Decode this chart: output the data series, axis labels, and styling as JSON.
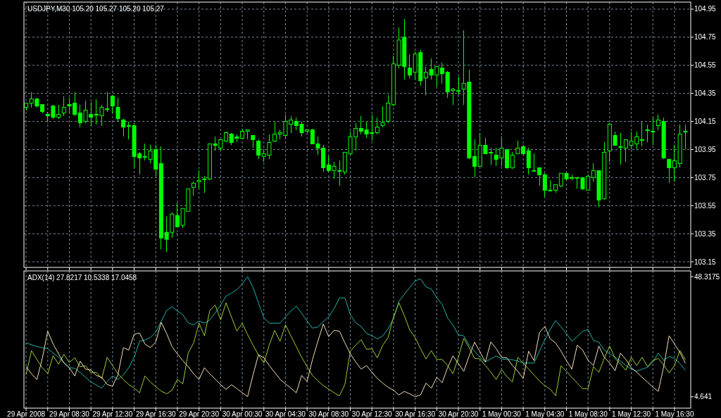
{
  "chart_data": [
    {
      "type": "candlestick",
      "title": "USDJPY,M30  105.20 105.27 105.20 105.27",
      "color": "#00ff00",
      "grid": true,
      "tick_labels": "y",
      "x": [
        "2008-04-29T04:30",
        "2008-04-29T05:00",
        "2008-04-29T05:30",
        "2008-04-29T06:00",
        "2008-04-29T06:30",
        "2008-04-29T07:00",
        "2008-04-29T07:30",
        "2008-04-29T08:00",
        "2008-04-29T08:30",
        "2008-04-29T09:00",
        "2008-04-29T09:30",
        "2008-04-29T10:00",
        "2008-04-29T10:30",
        "2008-04-29T11:00",
        "2008-04-29T11:30",
        "2008-04-29T12:00",
        "2008-04-29T12:30",
        "2008-04-29T13:00",
        "2008-04-29T13:30",
        "2008-04-29T14:00",
        "2008-04-29T14:30",
        "2008-04-29T15:00",
        "2008-04-29T15:30",
        "2008-04-29T16:00",
        "2008-04-29T16:30",
        "2008-04-29T17:00",
        "2008-04-29T17:30",
        "2008-04-29T18:00",
        "2008-04-29T18:30",
        "2008-04-29T19:00",
        "2008-04-29T19:30",
        "2008-04-29T20:00",
        "2008-04-29T20:30",
        "2008-04-29T21:00",
        "2008-04-29T21:30",
        "2008-04-29T22:00",
        "2008-04-29T22:30",
        "2008-04-29T23:00",
        "2008-04-29T23:30",
        "2008-04-30T00:00",
        "2008-04-30T00:30",
        "2008-04-30T01:00",
        "2008-04-30T01:30",
        "2008-04-30T02:00",
        "2008-04-30T02:30",
        "2008-04-30T03:00",
        "2008-04-30T03:30",
        "2008-04-30T04:00",
        "2008-04-30T04:30",
        "2008-04-30T05:00",
        "2008-04-30T05:30",
        "2008-04-30T06:00",
        "2008-04-30T06:30",
        "2008-04-30T07:00",
        "2008-04-30T07:30",
        "2008-04-30T08:00",
        "2008-04-30T08:30",
        "2008-04-30T09:00",
        "2008-04-30T09:30",
        "2008-04-30T10:00",
        "2008-04-30T10:30",
        "2008-04-30T11:00",
        "2008-04-30T11:30",
        "2008-04-30T12:00",
        "2008-04-30T12:30",
        "2008-04-30T13:00",
        "2008-04-30T13:30",
        "2008-04-30T14:00",
        "2008-04-30T14:30",
        "2008-04-30T15:00",
        "2008-04-30T15:30",
        "2008-04-30T16:00",
        "2008-04-30T16:30",
        "2008-04-30T17:00",
        "2008-04-30T17:30",
        "2008-04-30T18:00",
        "2008-04-30T18:30",
        "2008-04-30T19:00",
        "2008-04-30T19:30",
        "2008-04-30T20:00",
        "2008-04-30T20:30",
        "2008-04-30T21:00",
        "2008-04-30T21:30",
        "2008-04-30T22:00",
        "2008-04-30T22:30",
        "2008-04-30T23:00",
        "2008-04-30T23:30",
        "2008-05-01T00:00",
        "2008-05-01T00:30",
        "2008-05-01T01:00",
        "2008-05-01T01:30",
        "2008-05-01T02:00",
        "2008-05-01T02:30",
        "2008-05-01T03:00",
        "2008-05-01T03:30",
        "2008-05-01T04:00",
        "2008-05-01T04:30",
        "2008-05-01T05:00",
        "2008-05-01T05:30",
        "2008-05-01T06:00",
        "2008-05-01T06:30",
        "2008-05-01T07:00",
        "2008-05-01T07:30",
        "2008-05-01T08:00",
        "2008-05-01T08:30",
        "2008-05-01T09:00",
        "2008-05-01T09:30",
        "2008-05-01T10:00",
        "2008-05-01T10:30",
        "2008-05-01T11:00",
        "2008-05-01T11:30",
        "2008-05-01T12:00",
        "2008-05-01T12:30",
        "2008-05-01T13:00",
        "2008-05-01T13:30",
        "2008-05-01T14:00",
        "2008-05-01T14:30",
        "2008-05-01T15:00",
        "2008-05-01T15:30",
        "2008-05-01T16:00",
        "2008-05-01T16:30",
        "2008-05-01T17:00",
        "2008-05-01T17:30"
      ],
      "ohlc": [
        [
          104.25,
          104.28,
          104.23,
          104.28
        ],
        [
          104.28,
          104.36,
          104.25,
          104.31
        ],
        [
          104.31,
          104.32,
          104.25,
          104.26
        ],
        [
          104.27,
          104.27,
          104.21,
          104.22
        ],
        [
          104.2,
          104.22,
          104.15,
          104.19
        ],
        [
          104.26,
          104.27,
          104.17,
          104.18
        ],
        [
          104.18,
          104.27,
          104.17,
          104.2
        ],
        [
          104.21,
          104.33,
          104.19,
          104.25
        ],
        [
          104.27,
          104.32,
          104.21,
          104.26
        ],
        [
          104.28,
          104.36,
          104.19,
          104.2
        ],
        [
          104.21,
          104.27,
          104.11,
          104.14
        ],
        [
          104.15,
          104.3,
          104.14,
          104.23
        ],
        [
          104.2,
          104.29,
          104.12,
          104.18
        ],
        [
          104.2,
          104.31,
          104.13,
          104.2
        ],
        [
          104.19,
          104.27,
          104.12,
          104.25
        ],
        [
          104.24,
          104.36,
          104.22,
          104.24
        ],
        [
          104.33,
          104.34,
          104.21,
          104.26
        ],
        [
          104.25,
          104.32,
          104.15,
          104.17
        ],
        [
          104.16,
          104.17,
          104.04,
          104.11
        ],
        [
          104.12,
          104.15,
          104.02,
          104.12
        ],
        [
          104.12,
          104.14,
          103.82,
          103.9
        ],
        [
          103.92,
          103.93,
          103.77,
          103.89
        ],
        [
          103.9,
          103.99,
          103.87,
          103.9
        ],
        [
          103.88,
          103.98,
          103.85,
          103.94
        ],
        [
          103.95,
          103.98,
          103.76,
          103.81
        ],
        [
          103.85,
          103.97,
          103.24,
          103.32
        ],
        [
          103.36,
          103.47,
          103.22,
          103.31
        ],
        [
          103.36,
          103.5,
          103.32,
          103.49
        ],
        [
          103.48,
          103.57,
          103.4,
          103.4
        ],
        [
          103.41,
          103.53,
          103.39,
          103.53
        ],
        [
          103.51,
          103.67,
          103.51,
          103.67
        ],
        [
          103.68,
          103.72,
          103.62,
          103.71
        ],
        [
          103.72,
          103.8,
          103.67,
          103.73
        ],
        [
          103.74,
          103.76,
          103.64,
          103.74
        ],
        [
          103.74,
          103.99,
          103.73,
          103.99
        ],
        [
          103.99,
          104.04,
          103.94,
          103.98
        ],
        [
          103.96,
          104.02,
          103.94,
          104.02
        ],
        [
          104.01,
          104.08,
          104,
          104.07
        ],
        [
          104.06,
          104.07,
          103.98,
          104
        ],
        [
          104.04,
          104.06,
          104,
          104.03
        ],
        [
          104.03,
          104.1,
          104.02,
          104.08
        ],
        [
          104.08,
          104.09,
          104.02,
          104.09
        ],
        [
          104.05,
          104.05,
          103.96,
          104.02
        ],
        [
          104.01,
          104.02,
          103.88,
          103.91
        ],
        [
          103.9,
          103.95,
          103.86,
          103.92
        ],
        [
          103.91,
          104.06,
          103.88,
          104
        ],
        [
          104.01,
          104.15,
          104,
          104.06
        ],
        [
          104.06,
          104.09,
          104.02,
          104.07
        ],
        [
          104.05,
          104.2,
          104.03,
          104.15
        ],
        [
          104.13,
          104.19,
          104.07,
          104.16
        ],
        [
          104.15,
          104.18,
          104.09,
          104.12
        ],
        [
          104.13,
          104.15,
          104.04,
          104.07
        ],
        [
          104.08,
          104.09,
          104.07,
          104.09
        ],
        [
          104.09,
          104.1,
          103.99,
          103.99
        ],
        [
          103.99,
          104.04,
          103.91,
          103.96
        ],
        [
          103.96,
          103.98,
          103.79,
          103.82
        ],
        [
          103.84,
          103.9,
          103.79,
          103.8
        ],
        [
          103.8,
          103.86,
          103.74,
          103.83
        ],
        [
          103.8,
          103.87,
          103.69,
          103.8
        ],
        [
          103.79,
          103.93,
          103.77,
          103.93
        ],
        [
          103.92,
          104.08,
          103.91,
          104.04
        ],
        [
          104.04,
          104.14,
          103.94,
          104.1
        ],
        [
          104.1,
          104.19,
          104.06,
          104.08
        ],
        [
          104.09,
          104.15,
          104.03,
          104.06
        ],
        [
          104.07,
          104.2,
          104.01,
          104.07
        ],
        [
          104.07,
          104.18,
          104.06,
          104.11
        ],
        [
          104.12,
          104.26,
          104.11,
          104.14
        ],
        [
          104.15,
          104.34,
          104.14,
          104.28
        ],
        [
          104.27,
          104.62,
          104.26,
          104.56
        ],
        [
          104.55,
          104.82,
          104.53,
          104.73
        ],
        [
          104.75,
          104.88,
          104.45,
          104.54
        ],
        [
          104.53,
          104.63,
          104.46,
          104.48
        ],
        [
          104.5,
          104.65,
          104.45,
          104.63
        ],
        [
          104.64,
          104.66,
          104.41,
          104.44
        ],
        [
          104.46,
          104.54,
          104.34,
          104.5
        ],
        [
          104.52,
          104.6,
          104.45,
          104.48
        ],
        [
          104.48,
          104.54,
          104.4,
          104.54
        ],
        [
          104.53,
          104.57,
          104.42,
          104.49
        ],
        [
          104.5,
          104.51,
          104.32,
          104.36
        ],
        [
          104.37,
          104.39,
          104.27,
          104.38
        ],
        [
          104.37,
          104.47,
          104.34,
          104.37
        ],
        [
          104.38,
          104.8,
          104.27,
          104.42
        ],
        [
          104.43,
          104.52,
          103.88,
          103.89
        ],
        [
          103.9,
          104.02,
          103.75,
          103.83
        ],
        [
          103.83,
          104.07,
          103.83,
          103.98
        ],
        [
          103.98,
          104.03,
          103.92,
          103.92
        ],
        [
          103.93,
          103.96,
          103.84,
          103.93
        ],
        [
          103.91,
          103.96,
          103.83,
          103.88
        ],
        [
          103.89,
          104.04,
          103.83,
          103.96
        ],
        [
          103.95,
          103.95,
          103.81,
          103.82
        ],
        [
          103.82,
          103.93,
          103.81,
          103.91
        ],
        [
          103.92,
          104.01,
          103.92,
          103.96
        ],
        [
          103.97,
          103.98,
          103.91,
          103.92
        ],
        [
          103.94,
          103.96,
          103.77,
          103.82
        ],
        [
          103.8,
          103.92,
          103.8,
          103.8
        ],
        [
          103.82,
          103.82,
          103.69,
          103.77
        ],
        [
          103.77,
          103.78,
          103.61,
          103.66
        ],
        [
          103.66,
          103.73,
          103.65,
          103.66
        ],
        [
          103.66,
          103.7,
          103.64,
          103.7
        ],
        [
          103.69,
          103.78,
          103.68,
          103.78
        ],
        [
          103.78,
          103.78,
          103.73,
          103.74
        ],
        [
          103.75,
          103.77,
          103.73,
          103.75
        ],
        [
          103.75,
          103.75,
          103.67,
          103.75
        ],
        [
          103.75,
          103.75,
          103.66,
          103.67
        ],
        [
          103.66,
          103.77,
          103.66,
          103.76
        ],
        [
          103.75,
          103.85,
          103.72,
          103.8
        ],
        [
          103.8,
          103.8,
          103.54,
          103.59
        ],
        [
          103.6,
          104,
          103.59,
          103.93
        ],
        [
          103.94,
          104.14,
          103.86,
          104.13
        ],
        [
          104.05,
          104.08,
          103.98,
          103.98
        ],
        [
          103.97,
          104.07,
          103.84,
          103.97
        ],
        [
          103.96,
          104.02,
          103.86,
          104.02
        ],
        [
          103.98,
          104.08,
          103.95,
          104.01
        ],
        [
          103.99,
          104.08,
          103.95,
          104.04
        ],
        [
          104.02,
          104.15,
          103.97,
          104.02
        ],
        [
          104.09,
          104.13,
          104,
          104.09
        ],
        [
          104.08,
          104.18,
          103.98,
          104.08
        ],
        [
          104.12,
          104.2,
          104.09,
          104.16
        ],
        [
          104.15,
          104.18,
          103.88,
          103.89
        ],
        [
          103.88,
          103.88,
          103.71,
          103.82
        ],
        [
          103.82,
          103.98,
          103.72,
          103.87
        ],
        [
          103.85,
          104.13,
          103.82,
          104.06
        ],
        [
          104.08,
          104.13,
          103.95,
          104.08
        ]
      ],
      "xlim": [
        "2008-04-29T04:18",
        "2008-05-01T18:00"
      ],
      "xticks": [
        {
          "value": "2008-04-29T04:30",
          "label": null
        },
        {
          "value": "2008-04-29T06:30",
          "label": null
        },
        {
          "value": "2008-04-29T08:30",
          "label": null
        },
        {
          "value": "2008-04-29T10:30",
          "label": null
        },
        {
          "value": "2008-04-29T12:30",
          "label": null
        },
        {
          "value": "2008-04-29T14:30",
          "label": null
        },
        {
          "value": "2008-04-29T16:30",
          "label": null
        },
        {
          "value": "2008-04-29T18:30",
          "label": null
        },
        {
          "value": "2008-04-29T20:30",
          "label": null
        },
        {
          "value": "2008-04-29T22:30",
          "label": null
        },
        {
          "value": "2008-04-30T00:30",
          "label": null
        },
        {
          "value": "2008-04-30T02:30",
          "label": null
        },
        {
          "value": "2008-04-30T04:30",
          "label": null
        },
        {
          "value": "2008-04-30T06:30",
          "label": null
        },
        {
          "value": "2008-04-30T08:30",
          "label": null
        },
        {
          "value": "2008-04-30T10:30",
          "label": null
        },
        {
          "value": "2008-04-30T12:30",
          "label": null
        },
        {
          "value": "2008-04-30T14:30",
          "label": null
        },
        {
          "value": "2008-04-30T16:30",
          "label": null
        },
        {
          "value": "2008-04-30T18:30",
          "label": null
        },
        {
          "value": "2008-04-30T20:30",
          "label": null
        },
        {
          "value": "2008-04-30T22:30",
          "label": null
        },
        {
          "value": "2008-05-01T00:30",
          "label": null
        },
        {
          "value": "2008-05-01T02:30",
          "label": null
        },
        {
          "value": "2008-05-01T04:30",
          "label": null
        },
        {
          "value": "2008-05-01T06:30",
          "label": null
        },
        {
          "value": "2008-05-01T08:30",
          "label": null
        },
        {
          "value": "2008-05-01T10:30",
          "label": null
        },
        {
          "value": "2008-05-01T12:30",
          "label": null
        },
        {
          "value": "2008-05-01T14:30",
          "label": null
        },
        {
          "value": "2008-05-01T16:30",
          "label": null
        }
      ],
      "ylim": [
        103.11,
        105
      ],
      "yticks": [
        103.15,
        103.35,
        103.55,
        103.75,
        103.95,
        104.15,
        104.35,
        104.55,
        104.75,
        104.95
      ]
    },
    {
      "type": "line",
      "title": "ADX(14) 27.8217 10.5338 17.0458",
      "grid": "x",
      "x": [
        "2008-04-29T04:30",
        "2008-04-29T05:00",
        "2008-04-29T05:30",
        "2008-04-29T06:00",
        "2008-04-29T06:30",
        "2008-04-29T07:00",
        "2008-04-29T07:30",
        "2008-04-29T08:00",
        "2008-04-29T08:30",
        "2008-04-29T09:00",
        "2008-04-29T09:30",
        "2008-04-29T10:00",
        "2008-04-29T10:30",
        "2008-04-29T11:00",
        "2008-04-29T11:30",
        "2008-04-29T12:00",
        "2008-04-29T12:30",
        "2008-04-29T13:00",
        "2008-04-29T13:30",
        "2008-04-29T14:00",
        "2008-04-29T14:30",
        "2008-04-29T15:00",
        "2008-04-29T15:30",
        "2008-04-29T16:00",
        "2008-04-29T16:30",
        "2008-04-29T17:00",
        "2008-04-29T17:30",
        "2008-04-29T18:00",
        "2008-04-29T18:30",
        "2008-04-29T19:00",
        "2008-04-29T19:30",
        "2008-04-29T20:00",
        "2008-04-29T20:30",
        "2008-04-29T21:00",
        "2008-04-29T21:30",
        "2008-04-29T22:00",
        "2008-04-29T22:30",
        "2008-04-29T23:00",
        "2008-04-29T23:30",
        "2008-04-30T00:00",
        "2008-04-30T00:30",
        "2008-04-30T01:00",
        "2008-04-30T01:30",
        "2008-04-30T02:00",
        "2008-04-30T02:30",
        "2008-04-30T03:00",
        "2008-04-30T03:30",
        "2008-04-30T04:00",
        "2008-04-30T04:30",
        "2008-04-30T05:00",
        "2008-04-30T05:30",
        "2008-04-30T06:00",
        "2008-04-30T06:30",
        "2008-04-30T07:00",
        "2008-04-30T07:30",
        "2008-04-30T08:00",
        "2008-04-30T08:30",
        "2008-04-30T09:00",
        "2008-04-30T09:30",
        "2008-04-30T10:00",
        "2008-04-30T10:30",
        "2008-04-30T11:00",
        "2008-04-30T11:30",
        "2008-04-30T12:00",
        "2008-04-30T12:30",
        "2008-04-30T13:00",
        "2008-04-30T13:30",
        "2008-04-30T14:00",
        "2008-04-30T14:30",
        "2008-04-30T15:00",
        "2008-04-30T15:30",
        "2008-04-30T16:00",
        "2008-04-30T16:30",
        "2008-04-30T17:00",
        "2008-04-30T17:30",
        "2008-04-30T18:00",
        "2008-04-30T18:30",
        "2008-04-30T19:00",
        "2008-04-30T19:30",
        "2008-04-30T20:00",
        "2008-04-30T20:30",
        "2008-04-30T21:00",
        "2008-04-30T21:30",
        "2008-04-30T22:00",
        "2008-04-30T22:30",
        "2008-04-30T23:00",
        "2008-04-30T23:30",
        "2008-05-01T00:00",
        "2008-05-01T00:30",
        "2008-05-01T01:00",
        "2008-05-01T01:30",
        "2008-05-01T02:00",
        "2008-05-01T02:30",
        "2008-05-01T03:00",
        "2008-05-01T03:30",
        "2008-05-01T04:00",
        "2008-05-01T04:30",
        "2008-05-01T05:00",
        "2008-05-01T05:30",
        "2008-05-01T06:00",
        "2008-05-01T06:30",
        "2008-05-01T07:00",
        "2008-05-01T07:30",
        "2008-05-01T08:00",
        "2008-05-01T08:30",
        "2008-05-01T09:00",
        "2008-05-01T09:30",
        "2008-05-01T10:00",
        "2008-05-01T10:30",
        "2008-05-01T11:00",
        "2008-05-01T11:30",
        "2008-05-01T12:00",
        "2008-05-01T12:30",
        "2008-05-01T13:00",
        "2008-05-01T13:30",
        "2008-05-01T14:00",
        "2008-05-01T14:30",
        "2008-05-01T15:00",
        "2008-05-01T15:30",
        "2008-05-01T16:00",
        "2008-05-01T16:30",
        "2008-05-01T17:00",
        "2008-05-01T17:30"
      ],
      "series": [
        {
          "color": "#20b2aa",
          "x": [
            "2008-04-29T04:30",
            "2008-04-29T05:30",
            "2008-04-29T06:30",
            "2008-04-29T07:30",
            "2008-04-29T08:30",
            "2008-04-29T09:00",
            "2008-04-29T09:30",
            "2008-04-29T10:30",
            "2008-04-29T11:30",
            "2008-04-29T12:00",
            "2008-04-29T12:30",
            "2008-04-29T13:00",
            "2008-04-29T13:30",
            "2008-04-29T14:00",
            "2008-04-29T14:30",
            "2008-04-29T15:00",
            "2008-04-29T15:30",
            "2008-04-29T16:00",
            "2008-04-29T16:30",
            "2008-04-29T17:00",
            "2008-04-29T17:30",
            "2008-04-29T18:00",
            "2008-04-29T18:30",
            "2008-04-29T19:00",
            "2008-04-29T19:30",
            "2008-04-29T20:00",
            "2008-04-29T20:30",
            "2008-04-29T21:00",
            "2008-04-29T21:30",
            "2008-04-29T22:00",
            "2008-04-29T22:30",
            "2008-04-29T23:00",
            "2008-04-29T23:30",
            "2008-04-30T00:00",
            "2008-04-30T00:30",
            "2008-04-30T01:00",
            "2008-04-30T01:30",
            "2008-04-30T02:00",
            "2008-04-30T02:30",
            "2008-04-30T03:00",
            "2008-04-30T03:30",
            "2008-04-30T04:00",
            "2008-04-30T04:30",
            "2008-04-30T05:00",
            "2008-04-30T05:30",
            "2008-04-30T06:00",
            "2008-04-30T06:30",
            "2008-04-30T07:00",
            "2008-04-30T07:30",
            "2008-04-30T08:00",
            "2008-04-30T08:30",
            "2008-04-30T09:00",
            "2008-04-30T09:30",
            "2008-04-30T10:00",
            "2008-04-30T10:30",
            "2008-04-30T11:00",
            "2008-04-30T11:30",
            "2008-04-30T12:00",
            "2008-04-30T12:30",
            "2008-04-30T13:00",
            "2008-04-30T13:30",
            "2008-04-30T14:00",
            "2008-04-30T14:30",
            "2008-04-30T15:00",
            "2008-04-30T15:30",
            "2008-04-30T16:00",
            "2008-04-30T16:30",
            "2008-04-30T17:00",
            "2008-04-30T17:30",
            "2008-04-30T18:00",
            "2008-04-30T18:30",
            "2008-04-30T19:00",
            "2008-04-30T19:30",
            "2008-04-30T20:00",
            "2008-04-30T20:30",
            "2008-04-30T21:00",
            "2008-04-30T21:30",
            "2008-04-30T22:00",
            "2008-04-30T22:30",
            "2008-04-30T23:00",
            "2008-04-30T23:30",
            "2008-05-01T00:00",
            "2008-05-01T00:30",
            "2008-05-01T01:00",
            "2008-05-01T01:30",
            "2008-05-01T02:00",
            "2008-05-01T02:30",
            "2008-05-01T03:00",
            "2008-05-01T03:30",
            "2008-05-01T04:00",
            "2008-05-01T04:30",
            "2008-05-01T05:00",
            "2008-05-01T05:30",
            "2008-05-01T06:00",
            "2008-05-01T06:30",
            "2008-05-01T07:00",
            "2008-05-01T07:30",
            "2008-05-01T08:00",
            "2008-05-01T08:30",
            "2008-05-01T09:00",
            "2008-05-01T09:30",
            "2008-05-01T10:00",
            "2008-05-01T10:30",
            "2008-05-01T11:00",
            "2008-05-01T11:30",
            "2008-05-01T12:00",
            "2008-05-01T12:30",
            "2008-05-01T13:00",
            "2008-05-01T13:30",
            "2008-05-01T14:00",
            "2008-05-01T14:30",
            "2008-05-01T15:00",
            "2008-05-01T15:30",
            "2008-05-01T16:00",
            "2008-05-01T16:30",
            "2008-05-01T17:00",
            "2008-05-01T17:30"
          ],
          "values": [
            24.2,
            22.9,
            22.1,
            19.0,
            15.2,
            15.0,
            13.5,
            10.0,
            7.8,
            10.2,
            12.2,
            10.9,
            12.6,
            15.2,
            19.0,
            24.8,
            25.3,
            26.2,
            28.1,
            32.0,
            36.0,
            37.4,
            35.8,
            34.5,
            31.5,
            30.8,
            32.2,
            31.4,
            32.6,
            35.1,
            38.0,
            41.2,
            42.3,
            43.6,
            45.7,
            48.3,
            44.4,
            38.8,
            33.4,
            31.4,
            31.4,
            31.4,
            33.7,
            35.8,
            37.6,
            35.0,
            32.2,
            29.6,
            30.0,
            32.0,
            33.7,
            36.7,
            40.6,
            40.6,
            34.5,
            31.5,
            30.2,
            27.7,
            26.8,
            25.7,
            26.8,
            29.4,
            33.1,
            39.4,
            41.9,
            44.4,
            46.8,
            47.5,
            44.6,
            43.8,
            40.6,
            38.2,
            33.3,
            30.7,
            27.2,
            26.8,
            23.4,
            21.2,
            19.0,
            17.3,
            18.4,
            19.5,
            18.4,
            18.2,
            18.1,
            17.6,
            16.9,
            16.9,
            16.9,
            21.2,
            25.3,
            29.1,
            32.4,
            30.0,
            27.7,
            24.8,
            26.5,
            28.5,
            29.1,
            25.1,
            24.5,
            21.6,
            20.3,
            19.0,
            17.6,
            16.0,
            14.7,
            13.9,
            14.7,
            15.3,
            17.3,
            20.5,
            17.8,
            19.3,
            18.6,
            16.7,
            14.3
          ]
        },
        {
          "color": "#9acd32",
          "values": [
            12.8,
            21.4,
            18.2,
            15.2,
            13.0,
            19.6,
            16.5,
            20.1,
            17.1,
            18.8,
            15.6,
            15.9,
            13.5,
            13.5,
            11.2,
            19.0,
            16.0,
            13.0,
            10.9,
            9.1,
            7.8,
            6.1,
            12.2,
            10.0,
            8.3,
            6.7,
            5.7,
            7.0,
            11.0,
            9.3,
            20.5,
            24.2,
            31.4,
            26.8,
            36.0,
            38.0,
            32.6,
            38.8,
            33.7,
            28.5,
            31.4,
            27.2,
            23.4,
            19.9,
            16.9,
            23.4,
            28.8,
            24.8,
            30.8,
            26.8,
            22.9,
            19.0,
            15.6,
            12.4,
            10.4,
            8.7,
            7.4,
            6.1,
            5.0,
            9.1,
            21.2,
            23.4,
            25.4,
            21.9,
            22.1,
            18.8,
            23.4,
            26.2,
            33.7,
            38.8,
            34.1,
            28.9,
            26.2,
            22.1,
            18.4,
            21.4,
            18.2,
            18.2,
            16.0,
            13.0,
            19.0,
            25.9,
            22.5,
            18.6,
            18.4,
            16.0,
            13.6,
            10.9,
            14.5,
            11.9,
            10.0,
            19.0,
            16.9,
            14.7,
            12.6,
            10.4,
            8.7,
            7.4,
            5.0,
            15.9,
            13.9,
            11.7,
            9.6,
            7.6,
            7.6,
            15.6,
            13.5,
            18.6,
            23.1,
            18.6,
            16.5,
            14.3,
            19.0,
            16.0,
            19.0,
            15.6,
            17.8,
            18.6,
            16.2,
            13.3,
            16.0,
            21.4,
            18.2
          ]
        },
        {
          "color": "#f5deb3",
          "values": [
            15.6,
            13.0,
            10.9,
            18.6,
            28.5,
            23.8,
            20.3,
            16.9,
            15.2,
            12.2,
            17.6,
            14.7,
            14.3,
            12.4,
            11.7,
            9.1,
            8.5,
            12.6,
            22.5,
            21.6,
            27.4,
            27.8,
            23.8,
            22.5,
            24.6,
            31.7,
            27.7,
            22.9,
            20.2,
            17.8,
            15.6,
            13.0,
            10.9,
            15.2,
            13.0,
            11.0,
            9.1,
            7.3,
            9.0,
            7.6,
            6.1,
            4.7,
            12.6,
            19.9,
            18.8,
            16.0,
            13.5,
            11.0,
            9.3,
            7.8,
            6.1,
            12.4,
            10.2,
            18.2,
            24.8,
            31.1,
            26.5,
            28.8,
            28.5,
            24.2,
            20.3,
            17.3,
            14.7,
            16.0,
            13.6,
            11.3,
            9.6,
            8.1,
            7.0,
            5.3,
            6.6,
            5.7,
            4.7,
            5.3,
            9.6,
            7.8,
            11.7,
            9.8,
            15.2,
            19.5,
            16.7,
            13.9,
            19.5,
            24.5,
            21.0,
            17.3,
            24.6,
            22.1,
            19.0,
            18.8,
            16.0,
            13.9,
            11.3,
            21.2,
            17.8,
            27.9,
            30.2,
            25.7,
            24.2,
            21.2,
            17.8,
            14.7,
            23.4,
            21.6,
            17.9,
            16.0,
            23.1,
            19.0,
            16.9,
            14.1,
            20.5,
            18.2,
            15.2,
            13.6,
            11.7,
            10.0,
            8.1,
            6.6,
            15.6,
            26.8,
            23.8,
            20.8,
            16.9
          ]
        }
      ],
      "xlim": [
        "2008-04-29T04:18",
        "2008-05-01T18:00"
      ],
      "xticks": [
        {
          "value": "2008-04-29T04:30",
          "label": "29 Apr 2008"
        },
        {
          "value": "2008-04-29T06:30",
          "label": null
        },
        {
          "value": "2008-04-29T08:30",
          "label": "29 Apr 08:30"
        },
        {
          "value": "2008-04-29T10:30",
          "label": null
        },
        {
          "value": "2008-04-29T12:30",
          "label": "29 Apr 12:30"
        },
        {
          "value": "2008-04-29T14:30",
          "label": null
        },
        {
          "value": "2008-04-29T16:30",
          "label": "29 Apr 16:30"
        },
        {
          "value": "2008-04-29T18:30",
          "label": null
        },
        {
          "value": "2008-04-29T20:30",
          "label": "29 Apr 20:30"
        },
        {
          "value": "2008-04-29T22:30",
          "label": null
        },
        {
          "value": "2008-04-30T00:30",
          "label": "30 Apr 00:30"
        },
        {
          "value": "2008-04-30T02:30",
          "label": null
        },
        {
          "value": "2008-04-30T04:30",
          "label": "30 Apr 04:30"
        },
        {
          "value": "2008-04-30T06:30",
          "label": null
        },
        {
          "value": "2008-04-30T08:30",
          "label": "30 Apr 08:30"
        },
        {
          "value": "2008-04-30T10:30",
          "label": null
        },
        {
          "value": "2008-04-30T12:30",
          "label": "30 Apr 12:30"
        },
        {
          "value": "2008-04-30T14:30",
          "label": null
        },
        {
          "value": "2008-04-30T16:30",
          "label": "30 Apr 16:30"
        },
        {
          "value": "2008-04-30T18:30",
          "label": null
        },
        {
          "value": "2008-04-30T20:30",
          "label": "30 Apr 20:30"
        },
        {
          "value": "2008-04-30T22:30",
          "label": null
        },
        {
          "value": "2008-05-01T00:30",
          "label": "1 May 00:30"
        },
        {
          "value": "2008-05-01T02:30",
          "label": null
        },
        {
          "value": "2008-05-01T04:30",
          "label": "1 May 04:30"
        },
        {
          "value": "2008-05-01T06:30",
          "label": null
        },
        {
          "value": "2008-05-01T08:30",
          "label": "1 May 08:30"
        },
        {
          "value": "2008-05-01T10:30",
          "label": null
        },
        {
          "value": "2008-05-01T12:30",
          "label": "1 May 12:30"
        },
        {
          "value": "2008-05-01T14:30",
          "label": null
        },
        {
          "value": "2008-05-01T16:30",
          "label": "1 May 16:30"
        }
      ],
      "ylim": [
        0.5,
        50.4
      ],
      "yticks": [
        48.3175,
        4.641
      ]
    }
  ]
}
